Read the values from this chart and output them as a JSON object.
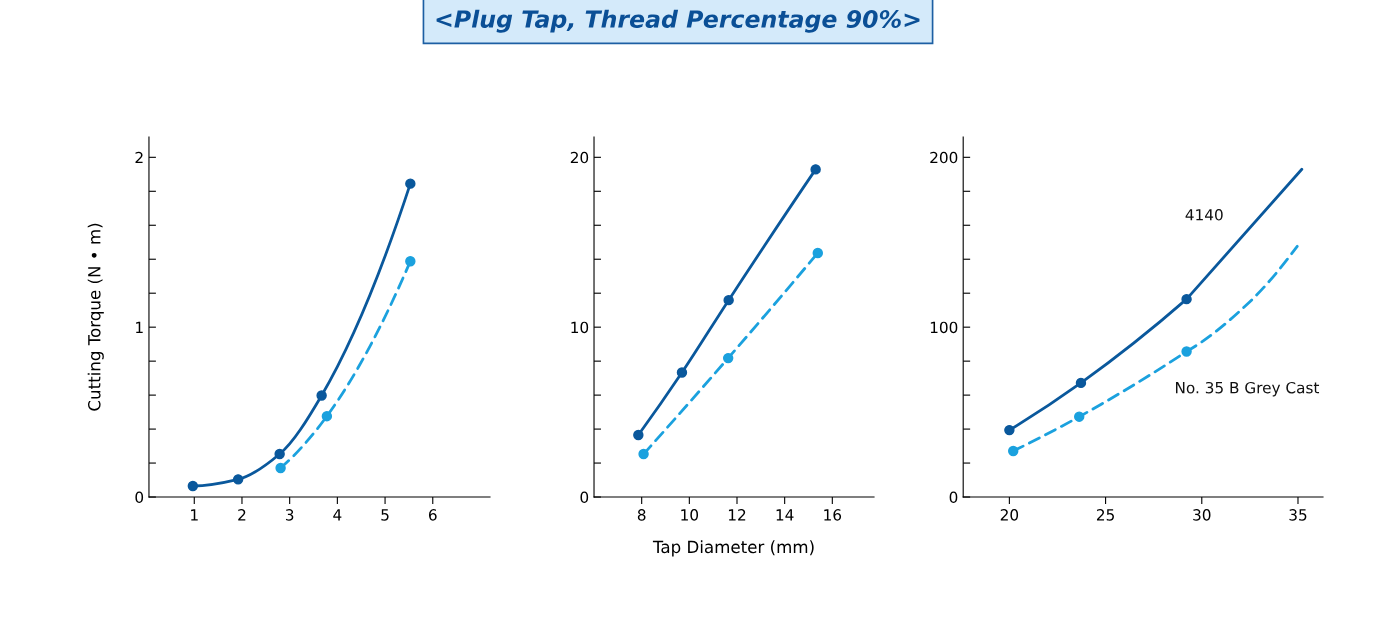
{
  "chart_data": [
    {
      "type": "line",
      "ylabel": "Cutting Torque (N • m)",
      "xlim": [
        0.05,
        7.2
      ],
      "xticks": [
        1,
        2,
        3,
        4,
        5,
        6
      ],
      "ylim": [
        0,
        2.12
      ],
      "yticks": [
        0,
        {
          "value": 0.2,
          "label": null
        },
        {
          "value": 0.4,
          "label": null
        },
        {
          "value": 0.6,
          "label": null
        },
        {
          "value": 0.8,
          "label": null
        },
        1,
        {
          "value": 1.2,
          "label": null
        },
        {
          "value": 1.4,
          "label": null
        },
        {
          "value": 1.6,
          "label": null
        },
        {
          "value": 1.8,
          "label": null
        },
        2
      ],
      "grid": false,
      "marker": "circle",
      "series": [
        {
          "color": "#0a589c",
          "line_style": "solid",
          "x": [
            0.97,
            1.92,
            2.79,
            3.67,
            5.53
          ],
          "values": [
            0.065,
            0.104,
            0.253,
            0.598,
            1.845
          ]
        },
        {
          "color": "#1ba1de",
          "line_style": "dashed",
          "x": [
            2.81,
            3.78,
            5.53
          ],
          "values": [
            0.171,
            0.476,
            1.388
          ]
        }
      ]
    },
    {
      "type": "line",
      "title": "<Plug Tap, Thread Percentage 90%>",
      "xlabel": "Tap Diameter (mm)",
      "xlim": [
        6,
        17.75
      ],
      "xticks": [
        8,
        10,
        12,
        14,
        16
      ],
      "ylim": [
        0,
        21.2
      ],
      "yticks": [
        0,
        {
          "value": 2,
          "label": null
        },
        {
          "value": 4,
          "label": null
        },
        {
          "value": 6,
          "label": null
        },
        {
          "value": 8,
          "label": null
        },
        10,
        {
          "value": 12,
          "label": null
        },
        {
          "value": 14,
          "label": null
        },
        {
          "value": 16,
          "label": null
        },
        {
          "value": 18,
          "label": null
        },
        20
      ],
      "grid": false,
      "marker": "circle",
      "series": [
        {
          "color": "#0a589c",
          "line_style": "solid",
          "x": [
            7.86,
            9.69,
            11.65,
            15.3
          ],
          "values": [
            3.65,
            7.33,
            11.59,
            19.29
          ]
        },
        {
          "color": "#1ba1de",
          "line_style": "dashed",
          "x": [
            8.08,
            11.63,
            15.39
          ],
          "values": [
            2.53,
            8.18,
            14.37
          ]
        }
      ]
    },
    {
      "type": "line",
      "xlim": [
        17.6,
        36.3
      ],
      "xticks": [
        20,
        25,
        30,
        35
      ],
      "ylim": [
        0,
        212
      ],
      "yticks": [
        0,
        {
          "value": 20,
          "label": null
        },
        {
          "value": 40,
          "label": null
        },
        {
          "value": 60,
          "label": null
        },
        {
          "value": 80,
          "label": null
        },
        100,
        {
          "value": 120,
          "label": null
        },
        {
          "value": 140,
          "label": null
        },
        {
          "value": 160,
          "label": null
        },
        {
          "value": 180,
          "label": null
        },
        200
      ],
      "grid": false,
      "series": [
        {
          "name": "4140",
          "color": "#0a589c",
          "line_style": "solid",
          "marker": "circle",
          "x": [
            20.0,
            23.72,
            29.21
          ],
          "values": [
            39.4,
            67.2,
            116.5
          ]
        },
        {
          "color": "#0a589c",
          "line_style": "solid",
          "marker": "none",
          "x": [
            29.21,
            35.2
          ],
          "values": [
            116.5,
            193
          ]
        },
        {
          "name": "No. 35 B Grey Cast",
          "color": "#1ba1de",
          "line_style": "dashed",
          "marker": "circle",
          "x": [
            20.2,
            23.63,
            29.21
          ],
          "values": [
            27.1,
            47.3,
            85.7
          ]
        },
        {
          "color": "#1ba1de",
          "line_style": "dashed",
          "marker": "none",
          "x": [
            29.21,
            32.5,
            34.96
          ],
          "values": [
            85.7,
            115,
            147.6
          ]
        }
      ]
    }
  ]
}
